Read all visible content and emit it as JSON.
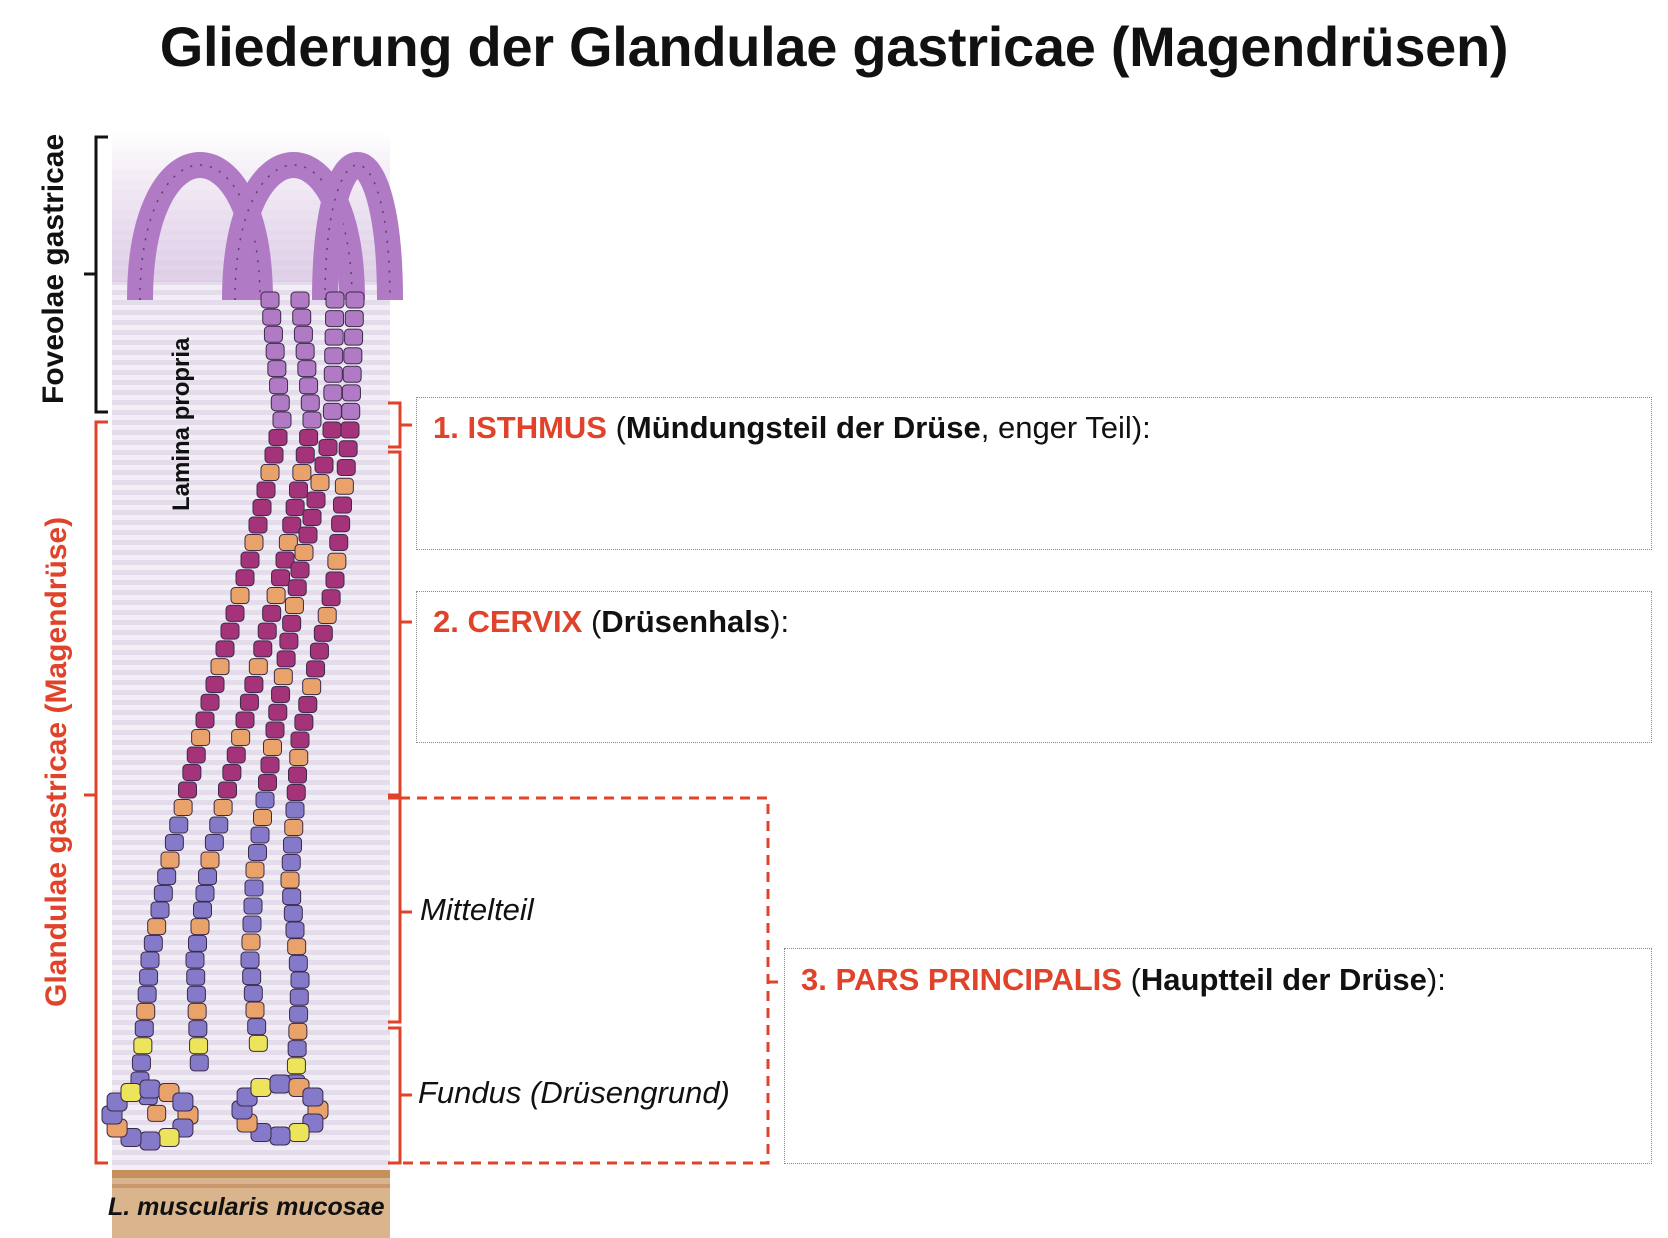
{
  "title": "Gliederung der Glandulae gastricae (Magendrüsen)",
  "side_labels": {
    "foveolae": "Foveolae gastricae",
    "glandulae": "Glandulae gastricae (Magendrüse)",
    "lamina_propria": "Lamina propria",
    "muscularis": "L. muscularis mucosae"
  },
  "sections": [
    {
      "number": "1. ISTHMUS",
      "open": "(",
      "bold": "Mündungsteil der Drüse",
      "normal": ", enger Teil",
      "close": "):"
    },
    {
      "number": "2. CERVIX",
      "open": "(",
      "bold": "Drüsenhals",
      "normal": "",
      "close": "):"
    },
    {
      "number": "3. PARS PRINCIPALIS",
      "open": "(",
      "bold": "Hauptteil der Drüse",
      "normal": "",
      "close": "):"
    }
  ],
  "subparts": {
    "mittelteil": "Mittelteil",
    "fundus": "Fundus (Drüsengrund)"
  },
  "colors": {
    "accent_red": "#e0422a",
    "parietal_orange": "#e9a36a",
    "neck_magenta": "#a4337a",
    "chief_violet": "#8579c9",
    "foveolar_purple": "#b07ac4",
    "endocrine_yellow": "#ece45a"
  }
}
